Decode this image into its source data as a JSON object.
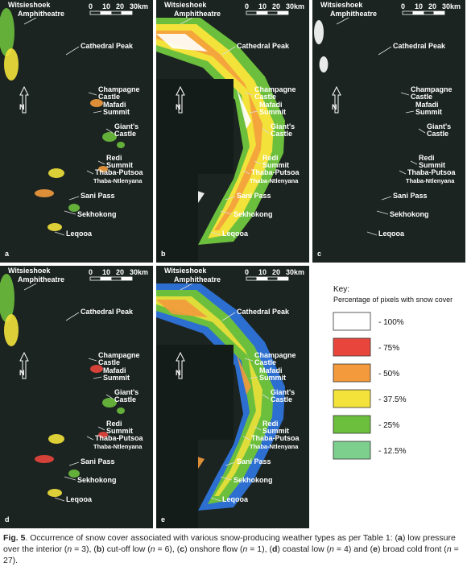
{
  "panels": [
    {
      "letter": "a"
    },
    {
      "letter": "b"
    },
    {
      "letter": "c"
    },
    {
      "letter": "d"
    },
    {
      "letter": "e"
    }
  ],
  "places": [
    "Witsieshoek",
    "Amphitheatre",
    "Cathedral Peak",
    "Champagne",
    "Castle",
    "Mafadi",
    "Summit",
    "Giant's",
    "Castle",
    "Redi",
    "Summit",
    "Thaba-Putsoa",
    "Thaba-Ntlenyana",
    "Sani Pass",
    "Sekhokong",
    "Leqooa"
  ],
  "scale_labels": [
    "0",
    "10",
    "20",
    "30km"
  ],
  "north": "N",
  "key": {
    "title": "Key:",
    "subtitle": "Percentage of pixels with snow cover",
    "items": [
      {
        "label": "- 100%",
        "color": "#ffffff"
      },
      {
        "label": "- 75%",
        "color": "#e8453c"
      },
      {
        "label": "- 50%",
        "color": "#f39a3c"
      },
      {
        "label": "- 37.5%",
        "color": "#f3e23a"
      },
      {
        "label": "- 25%",
        "color": "#6cbf3c"
      },
      {
        "label": "- 12.5%",
        "color": "#7ccf8c"
      }
    ]
  },
  "caption": {
    "segments": [
      "Fig. 5",
      ". Occurrence of snow cover associated with various snow-producing weather types as per Table 1: (",
      "a",
      ") low pressure over the interior (",
      "n",
      " = 3), (",
      "b",
      ") cut-off low (",
      "n",
      " = 6), (",
      "c",
      ") onshore flow (",
      "n",
      " = 1), (",
      "d",
      ") coastal low (",
      "n",
      " = 4) and (",
      "e",
      ") broad cold front (",
      "n",
      " = 27)."
    ]
  }
}
